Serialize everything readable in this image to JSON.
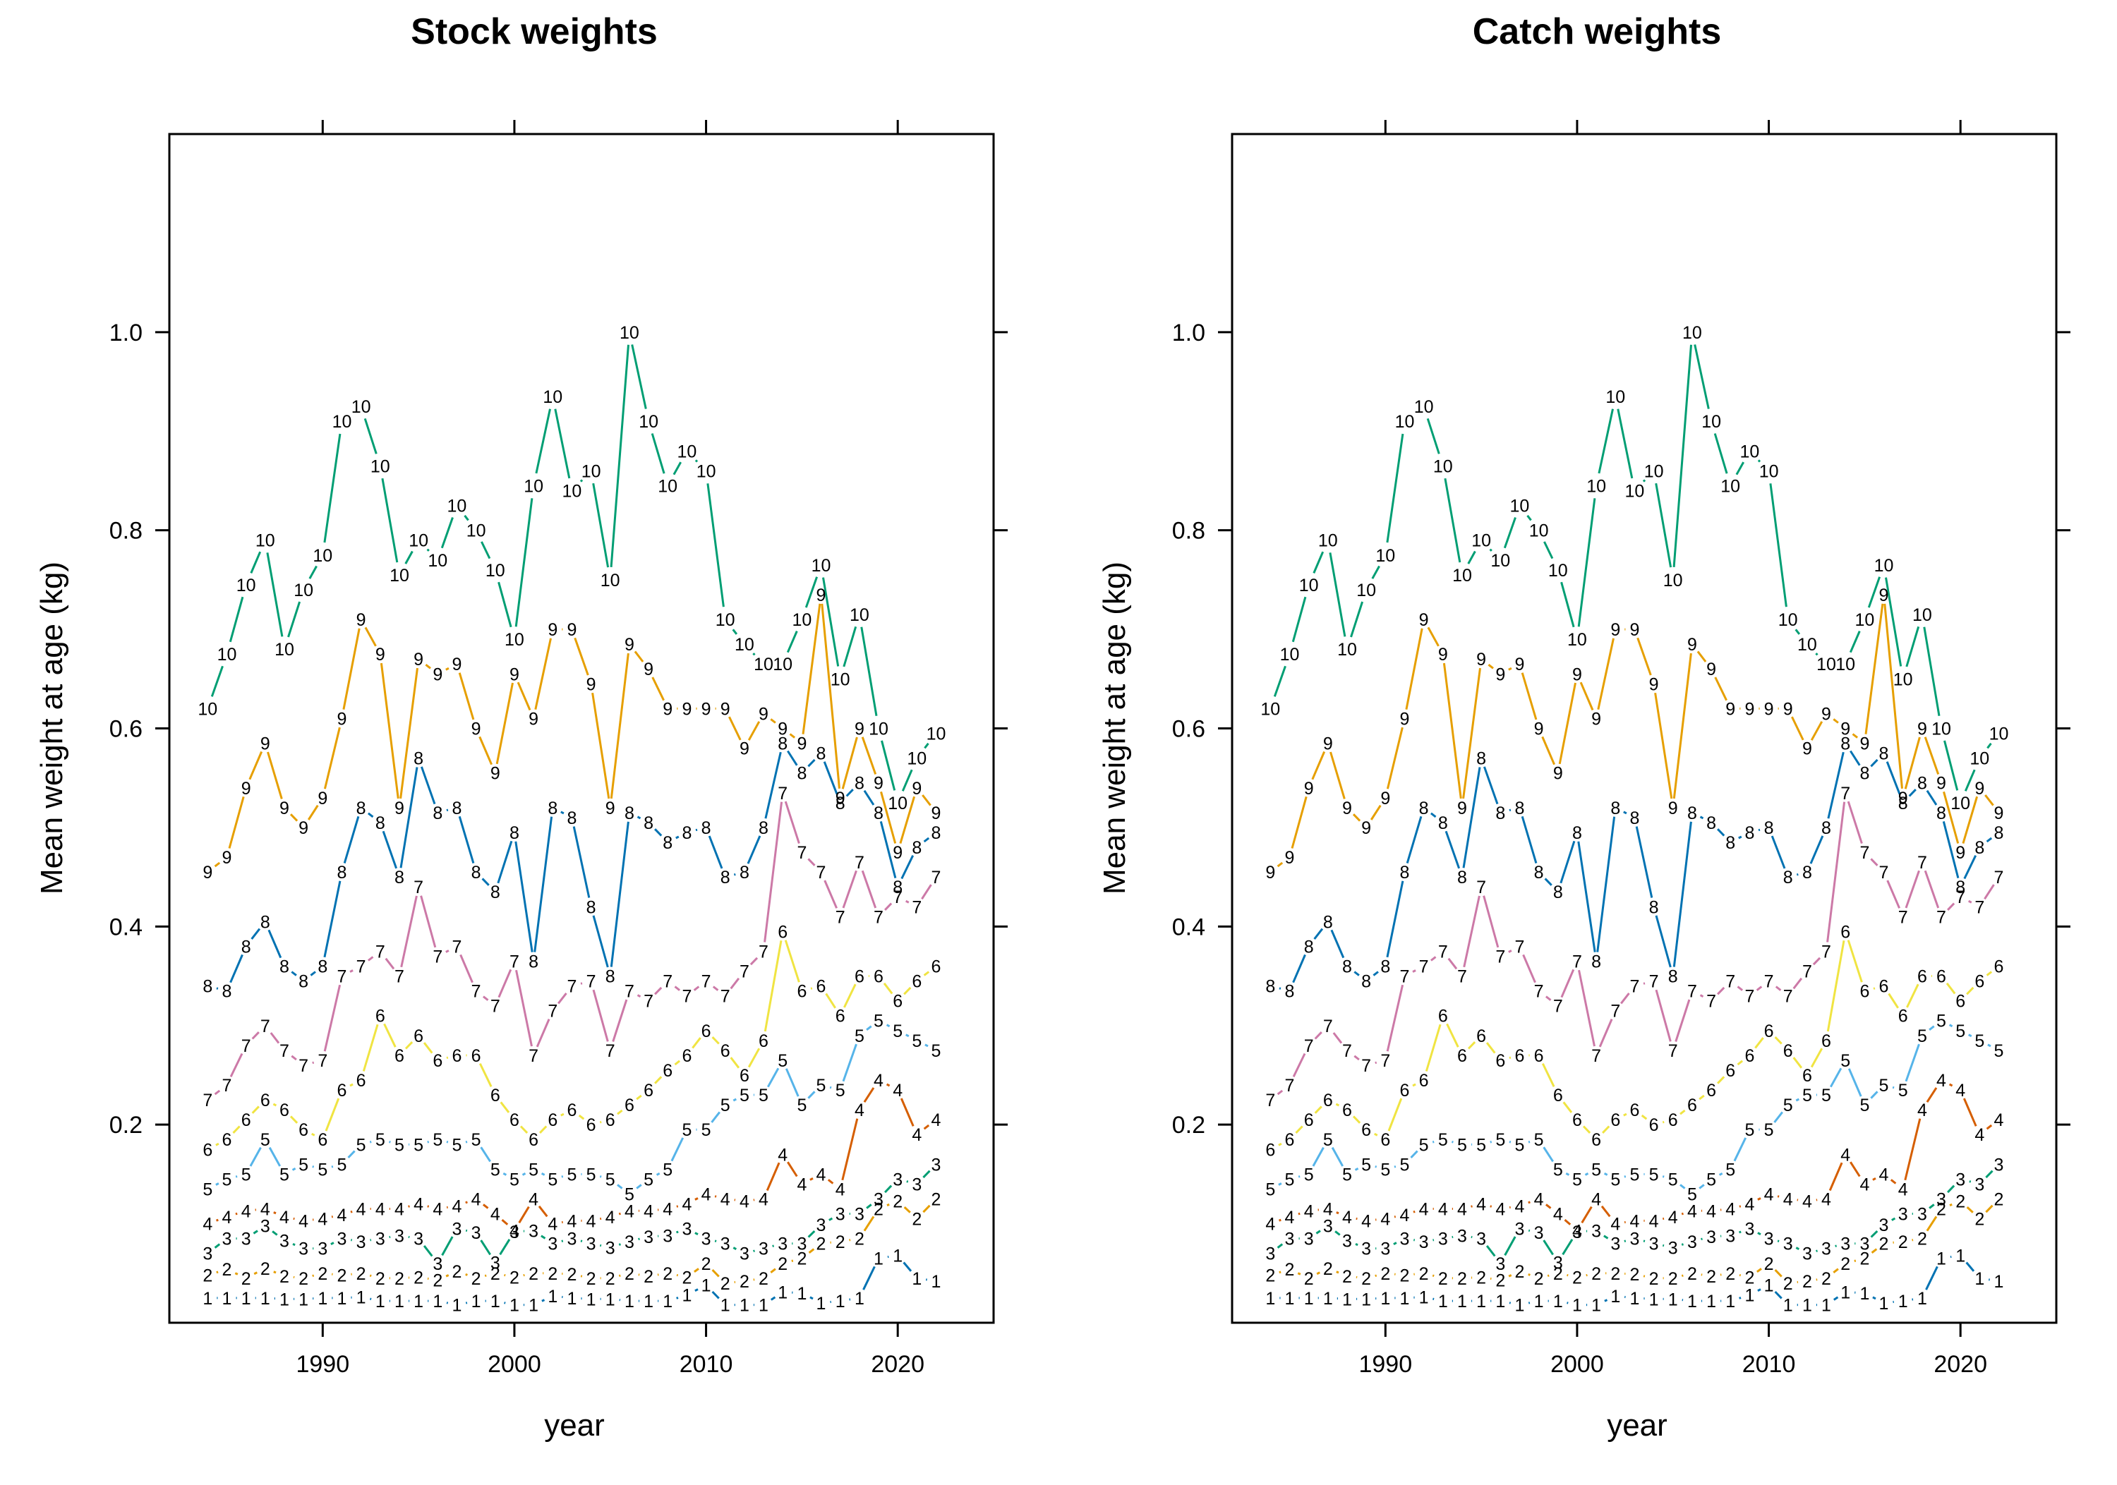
{
  "colors": {
    "age_1": "#0072B2",
    "age_2": "#E69F00",
    "age_3": "#009E73",
    "age_4": "#D55E00",
    "age_5": "#56B4E9",
    "age_6": "#F0E442",
    "age_7": "#CC79A7",
    "age_8": "#0072B2",
    "age_9": "#E69F00",
    "age_10": "#009E73"
  },
  "chart_data": [
    {
      "type": "line",
      "title": "Stock weights",
      "xlabel": "year",
      "ylabel": "Mean weight at age (kg)",
      "xlim": [
        1982,
        2025
      ],
      "ylim": [
        0,
        1.2
      ],
      "x_ticks": [
        1990,
        2000,
        2010,
        2020
      ],
      "x_tick_labels": [
        "1990",
        "2000",
        "2010",
        "2020"
      ],
      "y_ticks": [
        0.2,
        0.4,
        0.6,
        0.8,
        1.0
      ],
      "y_tick_labels": [
        "0.2",
        "0.4",
        "0.6",
        "0.8",
        "1.0"
      ],
      "grid": false,
      "x": [
        1984,
        1985,
        1986,
        1987,
        1988,
        1989,
        1990,
        1991,
        1992,
        1993,
        1994,
        1995,
        1996,
        1997,
        1998,
        1999,
        2000,
        2001,
        2002,
        2003,
        2004,
        2005,
        2006,
        2007,
        2008,
        2009,
        2010,
        2011,
        2012,
        2013,
        2014,
        2015,
        2016,
        2017,
        2018,
        2019,
        2020,
        2021,
        2022
      ],
      "series": [
        {
          "name": "1",
          "values": [
            0.025,
            0.025,
            0.025,
            0.025,
            0.024,
            0.024,
            0.025,
            0.025,
            0.026,
            0.022,
            0.022,
            0.022,
            0.022,
            0.018,
            0.022,
            0.022,
            0.018,
            0.018,
            0.027,
            0.025,
            0.024,
            0.024,
            0.022,
            0.022,
            0.022,
            0.028,
            0.038,
            0.018,
            0.018,
            0.018,
            0.031,
            0.03,
            0.02,
            0.022,
            0.025,
            0.065,
            0.068,
            0.045,
            0.042
          ]
        },
        {
          "name": "2",
          "values": [
            0.048,
            0.054,
            0.045,
            0.055,
            0.047,
            0.045,
            0.05,
            0.048,
            0.05,
            0.045,
            0.045,
            0.046,
            0.043,
            0.052,
            0.045,
            0.05,
            0.046,
            0.05,
            0.05,
            0.049,
            0.045,
            0.045,
            0.05,
            0.047,
            0.05,
            0.046,
            0.06,
            0.04,
            0.042,
            0.045,
            0.06,
            0.065,
            0.08,
            0.082,
            0.085,
            0.115,
            0.123,
            0.105,
            0.125
          ]
        },
        {
          "name": "3",
          "values": [
            0.07,
            0.085,
            0.085,
            0.098,
            0.083,
            0.075,
            0.075,
            0.085,
            0.082,
            0.085,
            0.088,
            0.085,
            0.06,
            0.095,
            0.091,
            0.061,
            0.092,
            0.093,
            0.08,
            0.085,
            0.08,
            0.076,
            0.082,
            0.087,
            0.088,
            0.095,
            0.085,
            0.08,
            0.07,
            0.075,
            0.08,
            0.08,
            0.099,
            0.11,
            0.11,
            0.125,
            0.145,
            0.14,
            0.16
          ]
        },
        {
          "name": "4",
          "values": [
            0.1,
            0.107,
            0.113,
            0.115,
            0.107,
            0.103,
            0.105,
            0.109,
            0.115,
            0.115,
            0.115,
            0.12,
            0.115,
            0.118,
            0.125,
            0.11,
            0.093,
            0.125,
            0.1,
            0.103,
            0.103,
            0.107,
            0.113,
            0.113,
            0.115,
            0.12,
            0.13,
            0.125,
            0.123,
            0.125,
            0.17,
            0.14,
            0.15,
            0.135,
            0.215,
            0.245,
            0.235,
            0.19,
            0.205
          ]
        },
        {
          "name": "5",
          "values": [
            0.135,
            0.145,
            0.15,
            0.185,
            0.15,
            0.16,
            0.155,
            0.16,
            0.18,
            0.185,
            0.18,
            0.18,
            0.185,
            0.18,
            0.185,
            0.155,
            0.145,
            0.155,
            0.145,
            0.15,
            0.15,
            0.145,
            0.13,
            0.145,
            0.155,
            0.195,
            0.195,
            0.22,
            0.23,
            0.23,
            0.265,
            0.22,
            0.24,
            0.235,
            0.29,
            0.305,
            0.295,
            0.285,
            0.275
          ]
        },
        {
          "name": "6",
          "values": [
            0.175,
            0.185,
            0.205,
            0.225,
            0.215,
            0.195,
            0.185,
            0.235,
            0.245,
            0.31,
            0.27,
            0.29,
            0.265,
            0.27,
            0.27,
            0.23,
            0.205,
            0.185,
            0.205,
            0.215,
            0.2,
            0.205,
            0.22,
            0.235,
            0.255,
            0.27,
            0.295,
            0.275,
            0.25,
            0.285,
            0.395,
            0.335,
            0.34,
            0.31,
            0.35,
            0.35,
            0.325,
            0.345,
            0.36
          ]
        },
        {
          "name": "7",
          "values": [
            0.225,
            0.24,
            0.28,
            0.3,
            0.275,
            0.26,
            0.265,
            0.35,
            0.36,
            0.375,
            0.35,
            0.44,
            0.37,
            0.38,
            0.335,
            0.32,
            0.365,
            0.27,
            0.315,
            0.34,
            0.345,
            0.275,
            0.335,
            0.325,
            0.345,
            0.33,
            0.345,
            0.33,
            0.355,
            0.375,
            0.535,
            0.475,
            0.455,
            0.41,
            0.465,
            0.41,
            0.43,
            0.42,
            0.45
          ]
        },
        {
          "name": "8",
          "values": [
            0.34,
            0.335,
            0.38,
            0.405,
            0.36,
            0.345,
            0.36,
            0.455,
            0.52,
            0.505,
            0.45,
            0.57,
            0.515,
            0.52,
            0.455,
            0.435,
            0.495,
            0.365,
            0.52,
            0.51,
            0.42,
            0.35,
            0.515,
            0.505,
            0.485,
            0.495,
            0.5,
            0.45,
            0.455,
            0.5,
            0.585,
            0.555,
            0.575,
            0.525,
            0.545,
            0.515,
            0.44,
            0.48,
            0.495
          ]
        },
        {
          "name": "9",
          "values": [
            0.455,
            0.47,
            0.54,
            0.585,
            0.52,
            0.5,
            0.53,
            0.61,
            0.71,
            0.675,
            0.52,
            0.67,
            0.655,
            0.665,
            0.6,
            0.555,
            0.655,
            0.61,
            0.7,
            0.7,
            0.645,
            0.52,
            0.685,
            0.66,
            0.62,
            0.62,
            0.62,
            0.62,
            0.58,
            0.615,
            0.6,
            0.585,
            0.735,
            0.53,
            0.6,
            0.545,
            0.475,
            0.54,
            0.515
          ]
        },
        {
          "name": "10",
          "values": [
            0.62,
            0.675,
            0.745,
            0.79,
            0.68,
            0.74,
            0.775,
            0.91,
            0.925,
            0.865,
            0.755,
            0.79,
            0.77,
            0.825,
            0.8,
            0.76,
            0.69,
            0.845,
            0.935,
            0.84,
            0.86,
            0.75,
            1.0,
            0.91,
            0.845,
            0.88,
            0.86,
            0.71,
            0.685,
            0.665,
            0.665,
            0.71,
            0.765,
            0.65,
            0.715,
            0.6,
            0.525,
            0.57,
            0.595
          ]
        }
      ]
    },
    {
      "type": "line",
      "title": "Catch weights",
      "xlabel": "year",
      "ylabel": "Mean weight at age (kg)",
      "xlim": [
        1982,
        2025
      ],
      "ylim": [
        0,
        1.2
      ],
      "x_ticks": [
        1990,
        2000,
        2010,
        2020
      ],
      "x_tick_labels": [
        "1990",
        "2000",
        "2010",
        "2020"
      ],
      "y_ticks": [
        0.2,
        0.4,
        0.6,
        0.8,
        1.0
      ],
      "y_tick_labels": [
        "0.2",
        "0.4",
        "0.6",
        "0.8",
        "1.0"
      ],
      "grid": false,
      "x": [
        1984,
        1985,
        1986,
        1987,
        1988,
        1989,
        1990,
        1991,
        1992,
        1993,
        1994,
        1995,
        1996,
        1997,
        1998,
        1999,
        2000,
        2001,
        2002,
        2003,
        2004,
        2005,
        2006,
        2007,
        2008,
        2009,
        2010,
        2011,
        2012,
        2013,
        2014,
        2015,
        2016,
        2017,
        2018,
        2019,
        2020,
        2021,
        2022
      ],
      "series": [
        {
          "name": "1",
          "values": [
            0.025,
            0.025,
            0.025,
            0.025,
            0.024,
            0.024,
            0.025,
            0.025,
            0.026,
            0.022,
            0.022,
            0.022,
            0.022,
            0.018,
            0.022,
            0.022,
            0.018,
            0.018,
            0.027,
            0.025,
            0.024,
            0.024,
            0.022,
            0.022,
            0.022,
            0.028,
            0.038,
            0.018,
            0.018,
            0.018,
            0.031,
            0.03,
            0.02,
            0.022,
            0.025,
            0.065,
            0.068,
            0.045,
            0.042
          ]
        },
        {
          "name": "2",
          "values": [
            0.048,
            0.054,
            0.045,
            0.055,
            0.047,
            0.045,
            0.05,
            0.048,
            0.05,
            0.045,
            0.045,
            0.046,
            0.043,
            0.052,
            0.045,
            0.05,
            0.046,
            0.05,
            0.05,
            0.049,
            0.045,
            0.045,
            0.05,
            0.047,
            0.05,
            0.046,
            0.06,
            0.04,
            0.042,
            0.045,
            0.06,
            0.065,
            0.08,
            0.082,
            0.085,
            0.115,
            0.123,
            0.105,
            0.125
          ]
        },
        {
          "name": "3",
          "values": [
            0.07,
            0.085,
            0.085,
            0.098,
            0.083,
            0.075,
            0.075,
            0.085,
            0.082,
            0.085,
            0.088,
            0.085,
            0.06,
            0.095,
            0.091,
            0.061,
            0.092,
            0.093,
            0.08,
            0.085,
            0.08,
            0.076,
            0.082,
            0.087,
            0.088,
            0.095,
            0.085,
            0.08,
            0.07,
            0.075,
            0.08,
            0.08,
            0.099,
            0.11,
            0.11,
            0.125,
            0.145,
            0.14,
            0.16
          ]
        },
        {
          "name": "4",
          "values": [
            0.1,
            0.107,
            0.113,
            0.115,
            0.107,
            0.103,
            0.105,
            0.109,
            0.115,
            0.115,
            0.115,
            0.12,
            0.115,
            0.118,
            0.125,
            0.11,
            0.093,
            0.125,
            0.1,
            0.103,
            0.103,
            0.107,
            0.113,
            0.113,
            0.115,
            0.12,
            0.13,
            0.125,
            0.123,
            0.125,
            0.17,
            0.14,
            0.15,
            0.135,
            0.215,
            0.245,
            0.235,
            0.19,
            0.205
          ]
        },
        {
          "name": "5",
          "values": [
            0.135,
            0.145,
            0.15,
            0.185,
            0.15,
            0.16,
            0.155,
            0.16,
            0.18,
            0.185,
            0.18,
            0.18,
            0.185,
            0.18,
            0.185,
            0.155,
            0.145,
            0.155,
            0.145,
            0.15,
            0.15,
            0.145,
            0.13,
            0.145,
            0.155,
            0.195,
            0.195,
            0.22,
            0.23,
            0.23,
            0.265,
            0.22,
            0.24,
            0.235,
            0.29,
            0.305,
            0.295,
            0.285,
            0.275
          ]
        },
        {
          "name": "6",
          "values": [
            0.175,
            0.185,
            0.205,
            0.225,
            0.215,
            0.195,
            0.185,
            0.235,
            0.245,
            0.31,
            0.27,
            0.29,
            0.265,
            0.27,
            0.27,
            0.23,
            0.205,
            0.185,
            0.205,
            0.215,
            0.2,
            0.205,
            0.22,
            0.235,
            0.255,
            0.27,
            0.295,
            0.275,
            0.25,
            0.285,
            0.395,
            0.335,
            0.34,
            0.31,
            0.35,
            0.35,
            0.325,
            0.345,
            0.36
          ]
        },
        {
          "name": "7",
          "values": [
            0.225,
            0.24,
            0.28,
            0.3,
            0.275,
            0.26,
            0.265,
            0.35,
            0.36,
            0.375,
            0.35,
            0.44,
            0.37,
            0.38,
            0.335,
            0.32,
            0.365,
            0.27,
            0.315,
            0.34,
            0.345,
            0.275,
            0.335,
            0.325,
            0.345,
            0.33,
            0.345,
            0.33,
            0.355,
            0.375,
            0.535,
            0.475,
            0.455,
            0.41,
            0.465,
            0.41,
            0.43,
            0.42,
            0.45
          ]
        },
        {
          "name": "8",
          "values": [
            0.34,
            0.335,
            0.38,
            0.405,
            0.36,
            0.345,
            0.36,
            0.455,
            0.52,
            0.505,
            0.45,
            0.57,
            0.515,
            0.52,
            0.455,
            0.435,
            0.495,
            0.365,
            0.52,
            0.51,
            0.42,
            0.35,
            0.515,
            0.505,
            0.485,
            0.495,
            0.5,
            0.45,
            0.455,
            0.5,
            0.585,
            0.555,
            0.575,
            0.525,
            0.545,
            0.515,
            0.44,
            0.48,
            0.495
          ]
        },
        {
          "name": "9",
          "values": [
            0.455,
            0.47,
            0.54,
            0.585,
            0.52,
            0.5,
            0.53,
            0.61,
            0.71,
            0.675,
            0.52,
            0.67,
            0.655,
            0.665,
            0.6,
            0.555,
            0.655,
            0.61,
            0.7,
            0.7,
            0.645,
            0.52,
            0.685,
            0.66,
            0.62,
            0.62,
            0.62,
            0.62,
            0.58,
            0.615,
            0.6,
            0.585,
            0.735,
            0.53,
            0.6,
            0.545,
            0.475,
            0.54,
            0.515
          ]
        },
        {
          "name": "10",
          "values": [
            0.62,
            0.675,
            0.745,
            0.79,
            0.68,
            0.74,
            0.775,
            0.91,
            0.925,
            0.865,
            0.755,
            0.79,
            0.77,
            0.825,
            0.8,
            0.76,
            0.69,
            0.845,
            0.935,
            0.84,
            0.86,
            0.75,
            1.0,
            0.91,
            0.845,
            0.88,
            0.86,
            0.71,
            0.685,
            0.665,
            0.665,
            0.71,
            0.765,
            0.65,
            0.715,
            0.6,
            0.525,
            0.57,
            0.595
          ]
        }
      ]
    }
  ]
}
